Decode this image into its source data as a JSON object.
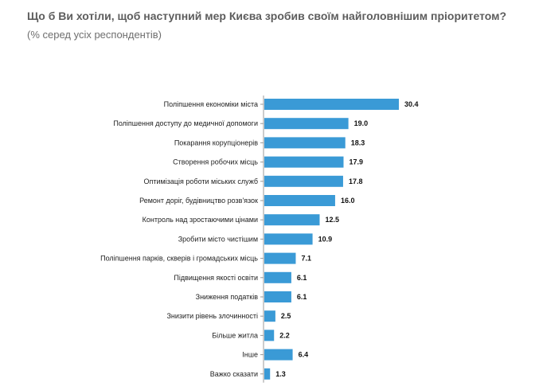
{
  "header": {
    "title": "Що б Ви хотіли, щоб наступний мер Києва зробив своїм найголовнішим пріоритетом?",
    "subtitle": "(% серед усіх респондентів)"
  },
  "colors": {
    "bar": "#3a9ad6",
    "axis": "#9a9a9a"
  },
  "chart_data": {
    "type": "bar",
    "orientation": "horizontal",
    "categories": [
      "Поліпшення економіки міста",
      "Поліпшення доступу до медичної допомоги",
      "Покарання корупціонерів",
      "Створення робочих місць",
      "Оптимізація роботи міських служб",
      "Ремонт доріг, будівництво розв'язок",
      "Контроль над зростаючими цінами",
      "Зробити місто чистішим",
      "Поліпшення парків, скверів і громадських місць",
      "Підвищення якості освіти",
      "Зниження податків",
      "Знизити рівень злочинності",
      "Більше житла",
      "Інше",
      "Важко сказати"
    ],
    "values": [
      30.4,
      19.0,
      18.3,
      17.9,
      17.8,
      16.0,
      12.5,
      10.9,
      7.1,
      6.1,
      6.1,
      2.5,
      2.2,
      6.4,
      1.3
    ],
    "value_labels": [
      "30.4",
      "19.0",
      "18.3",
      "17.9",
      "17.8",
      "16.0",
      "12.5",
      "10.9",
      "7.1",
      "6.1",
      "6.1",
      "2.5",
      "2.2",
      "6.4",
      "1.3"
    ],
    "xlim": [
      0,
      30.4
    ],
    "grid": false,
    "legend": "none"
  }
}
